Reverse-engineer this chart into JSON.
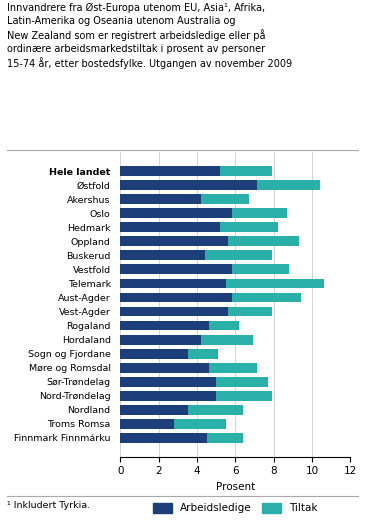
{
  "title_lines": [
    "Innvandrere fra Øst-Europa utenom EU, Asia¹, Afrika,",
    "Latin-Amerika og Oseania utenom Australia og",
    "New Zealand som er registrert arbeidsledige eller på",
    "ordinære arbeidsmarkedstiltak i prosent av personer",
    "15-74 år, etter bostedsfylke. Utgangen av november 2009"
  ],
  "footnote": "¹ Inkludert Tyrkia.",
  "xlabel": "Prosent",
  "legend_labels": [
    "Arbeidsledige",
    "Tiltak"
  ],
  "color_arbeidsledige": "#1c3f7a",
  "color_tiltak": "#2ab0a8",
  "categories": [
    "Hele landet",
    "Østfold",
    "Akershus",
    "Oslo",
    "Hedmark",
    "Oppland",
    "Buskerud",
    "Vestfold",
    "Telemark",
    "Aust-Agder",
    "Vest-Agder",
    "Rogaland",
    "Hordaland",
    "Sogn og Fjordane",
    "Møre og Romsdal",
    "Sør-Trøndelag",
    "Nord-Trøndelag",
    "Nordland",
    "Troms Romsa",
    "Finnmark Finnmárku"
  ],
  "arbeidsledige": [
    5.2,
    7.1,
    4.2,
    5.8,
    5.2,
    5.6,
    4.4,
    5.8,
    5.5,
    5.8,
    5.6,
    4.6,
    4.2,
    3.5,
    4.6,
    5.0,
    5.0,
    3.5,
    2.8,
    4.5
  ],
  "tiltak": [
    2.7,
    3.3,
    2.5,
    2.9,
    3.0,
    3.7,
    3.5,
    3.0,
    5.1,
    3.6,
    2.3,
    1.6,
    2.7,
    1.6,
    2.5,
    2.7,
    2.9,
    2.9,
    2.7,
    1.9
  ],
  "xlim": [
    0,
    12
  ],
  "xticks": [
    0,
    2,
    4,
    6,
    8,
    10,
    12
  ],
  "background_color": "#ffffff"
}
